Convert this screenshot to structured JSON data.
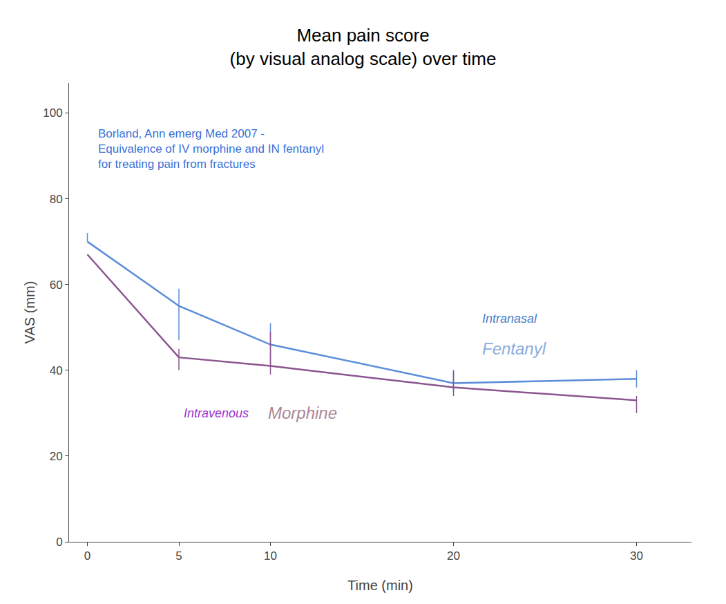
{
  "chart_data": {
    "type": "line",
    "title": "Mean pain score\n(by visual analog scale) over time",
    "x_label": "Time (min)",
    "y_label": "VAS (mm)",
    "x": [
      0,
      5,
      10,
      20,
      30
    ],
    "series": [
      {
        "color": "#5b8dd9",
        "values": [
          70,
          55,
          46,
          37,
          38
        ],
        "error_lower": [
          0,
          8,
          5,
          2,
          2
        ],
        "error_upper": [
          2,
          4,
          5,
          3,
          2
        ]
      },
      {
        "color": "#8b5590",
        "values": [
          67,
          43,
          41,
          36,
          33
        ],
        "error_lower": [
          0,
          3,
          2,
          2,
          3
        ],
        "error_upper": [
          0,
          2,
          8,
          4,
          1
        ]
      }
    ],
    "annotations": [
      {
        "text": "Intranasal",
        "color": "#4a7cc9"
      },
      {
        "text": "Fentanyl",
        "color": "#8aaddd"
      },
      {
        "text": "Intravenous",
        "color": "#9933cc"
      },
      {
        "text": "Morphine",
        "color": "#aa8899"
      },
      {
        "text": "Borland, Ann emerg Med 2007 -\nEquivalence of IV morphine and IN fentanyl\nfor treating pain from fractures",
        "color": "#3a6fd8"
      }
    ],
    "xlim": [
      -1,
      33
    ],
    "ylim": [
      0,
      107
    ],
    "xticks": [
      0,
      5,
      10,
      20,
      30
    ],
    "yticks": [
      0,
      20,
      40,
      60,
      80,
      100
    ],
    "grid": false,
    "legend": false
  }
}
